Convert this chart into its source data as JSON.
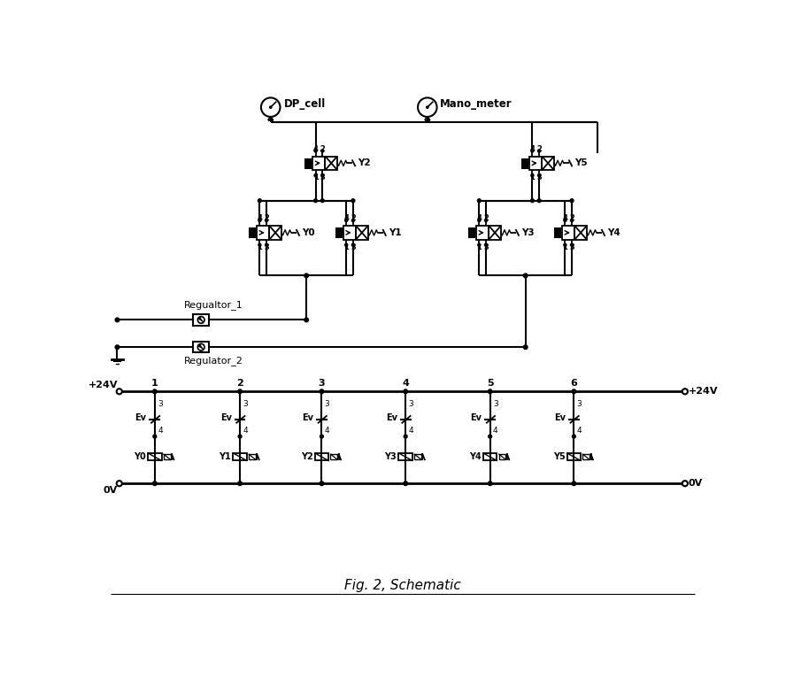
{
  "title": "Fig. 2, Schematic",
  "bg": "#ffffff",
  "lc": "#000000",
  "valve_labels_top": [
    "Y2",
    "Y5"
  ],
  "valve_labels_mid": [
    "Y0",
    "Y1",
    "Y3",
    "Y4"
  ],
  "valve_labels_elec": [
    "Y0",
    "Y1",
    "Y2",
    "Y3",
    "Y4",
    "Y5"
  ],
  "col_labels": [
    "1",
    "2",
    "3",
    "4",
    "5",
    "6"
  ],
  "reg_labels": [
    "Regualtor_1",
    "Regulator_2"
  ],
  "inst_labels": [
    "DP_cell",
    "Mano_meter"
  ]
}
